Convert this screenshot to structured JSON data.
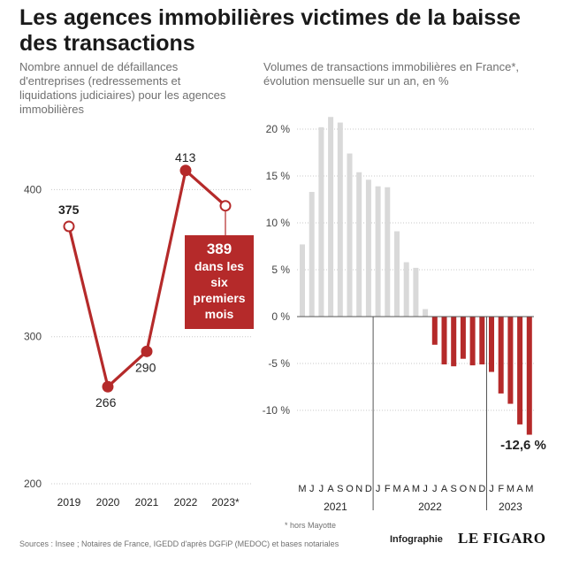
{
  "title": "Les agences immobilières victimes de la baisse des transactions",
  "footer": {
    "sources": "Sources : Insee ; Notaires de France, IGEDD d'après DGFiP (MEDOC) et bases notariales",
    "credit": "Infographie",
    "logo": "LE FIGARO",
    "note": "* hors Mayotte"
  },
  "chart_data": [
    {
      "type": "line",
      "subtitle": "Nombre annuel de défaillances d'entreprises (redressements et liquidations judiciaires) pour les agences immobilières",
      "categories": [
        "2019",
        "2020",
        "2021",
        "2022",
        "2023*"
      ],
      "values": [
        375,
        266,
        290,
        413,
        389
      ],
      "value_labels": [
        "375",
        "266",
        "290",
        "413",
        ""
      ],
      "ylim": [
        200,
        430
      ],
      "yticks": [
        "200",
        "300",
        "400"
      ],
      "annotation": {
        "value": "389",
        "text": "dans les six premiers mois",
        "color": "#b52a2a"
      },
      "color": "#b52a2a"
    },
    {
      "type": "bar",
      "subtitle": "Volumes de transactions immobilières en France*, évolution mensuelle sur un an, en %",
      "categories": [
        "M",
        "J",
        "J",
        "A",
        "S",
        "O",
        "N",
        "D",
        "J",
        "F",
        "M",
        "A",
        "M",
        "J",
        "J",
        "A",
        "S",
        "O",
        "N",
        "D",
        "J",
        "F",
        "M",
        "A",
        "M"
      ],
      "values": [
        7.7,
        13.3,
        20.2,
        21.3,
        20.7,
        17.4,
        15.4,
        14.6,
        13.9,
        13.8,
        9.1,
        5.8,
        5.2,
        0.8,
        -3.0,
        -5.1,
        -5.3,
        -4.5,
        -5.2,
        -5.1,
        -5.9,
        -8.2,
        -9.3,
        -11.5,
        -12.6
      ],
      "ylim": [
        -14,
        22
      ],
      "yticks": [
        {
          "value": 20,
          "label": "20 %"
        },
        {
          "value": 15,
          "label": "15 %"
        },
        {
          "value": 10,
          "label": "10 %"
        },
        {
          "value": 5,
          "label": "5 %"
        },
        {
          "value": 0,
          "label": "0 %"
        },
        {
          "value": -5,
          "label": "-5 %"
        },
        {
          "value": -10,
          "label": "-10 %"
        }
      ],
      "years": [
        {
          "label": "2021",
          "start": 0,
          "end": 7
        },
        {
          "label": "2022",
          "start": 8,
          "end": 19
        },
        {
          "label": "2023",
          "start": 20,
          "end": 24
        }
      ],
      "last_label": "-12,6 %",
      "positive_color": "#d9d9d9",
      "negative_color": "#b52a2a"
    }
  ]
}
